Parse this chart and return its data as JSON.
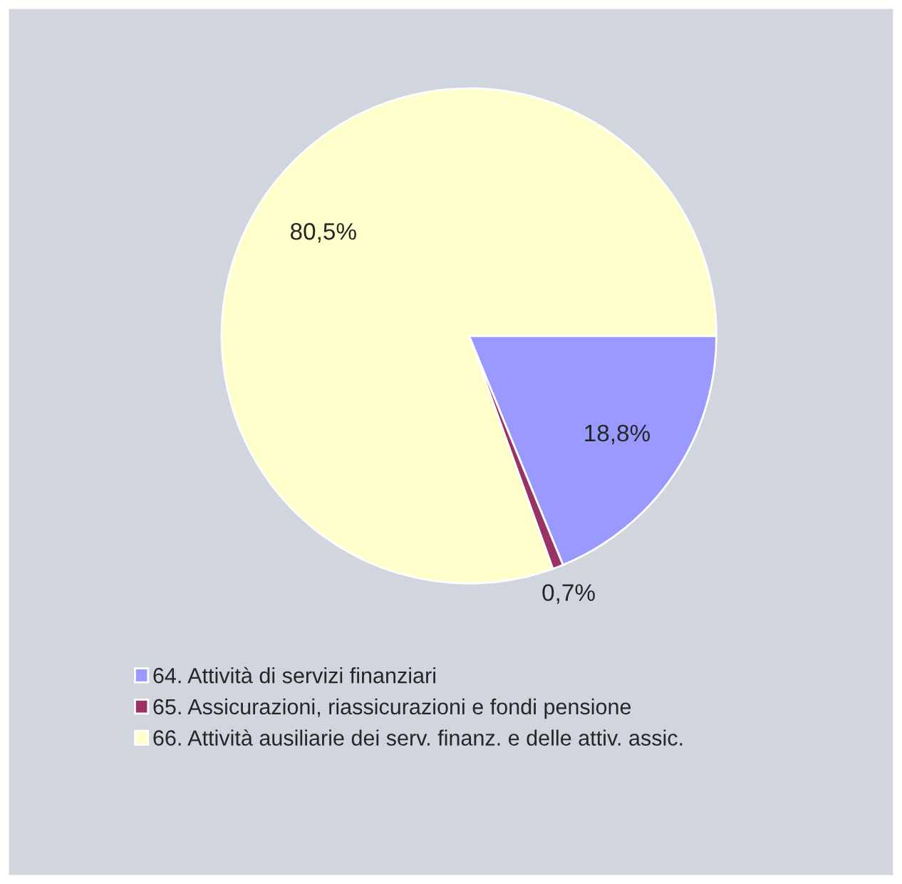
{
  "chart_data": {
    "type": "pie",
    "categories": [
      "64. Attività di servizi finanziari",
      "65. Assicurazioni, riassicurazioni e fondi pensione",
      "66. Attività ausiliarie dei serv. finanz. e delle attiv. assic."
    ],
    "values": [
      18.8,
      0.7,
      80.5
    ],
    "colors": [
      "#9999ff",
      "#993366",
      "#ffffcc"
    ],
    "value_labels": [
      "18,8%",
      "0,7%",
      "80,5%"
    ],
    "legend": "bottom"
  }
}
